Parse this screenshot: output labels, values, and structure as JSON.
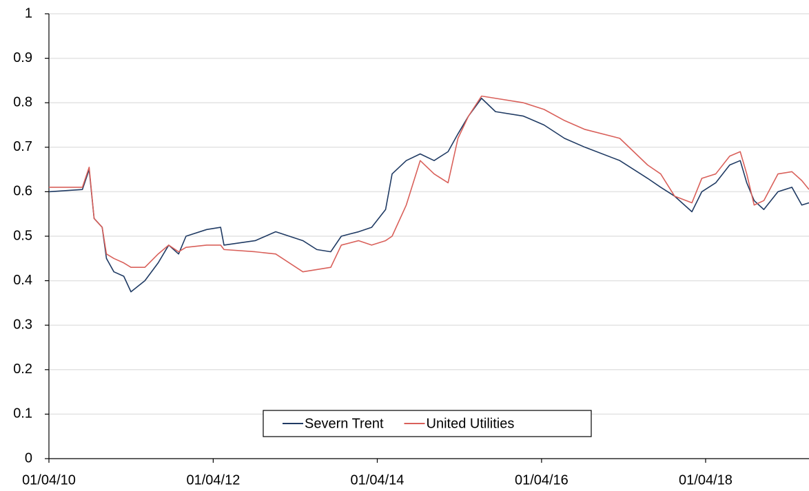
{
  "chart_data": {
    "type": "line",
    "x": [
      "2010-04-01",
      "2010-08-28",
      "2010-09-27",
      "2010-10-19",
      "2010-11-24",
      "2010-12-13",
      "2011-01-15",
      "2011-02-28",
      "2011-04-01",
      "2011-06-02",
      "2011-07-31",
      "2011-09-16",
      "2011-10-30",
      "2011-12-02",
      "2012-03-03",
      "2012-05-04",
      "2012-05-19",
      "2012-10-05",
      "2013-01-04",
      "2013-05-05",
      "2013-07-06",
      "2013-09-06",
      "2013-10-23",
      "2014-01-08",
      "2014-03-07",
      "2014-05-08",
      "2014-06-06",
      "2014-08-08",
      "2014-10-09",
      "2014-12-10",
      "2015-02-10",
      "2015-03-26",
      "2015-05-12",
      "2015-07-09",
      "2015-09-09",
      "2016-01-11",
      "2016-04-12",
      "2016-07-12",
      "2016-10-11",
      "2017-03-15",
      "2017-07-17",
      "2017-09-13",
      "2017-11-14",
      "2018-01-30",
      "2018-03-15",
      "2018-05-16",
      "2018-07-17",
      "2018-09-02",
      "2018-10-01",
      "2018-11-03",
      "2018-12-16",
      "2019-02-17",
      "2019-04-20",
      "2019-06-03",
      "2019-07-05"
    ],
    "series": [
      {
        "name": "Severn Trent",
        "color": "#1f3a63",
        "values": [
          0.6,
          0.605,
          0.65,
          0.54,
          0.52,
          0.45,
          0.42,
          0.41,
          0.375,
          0.4,
          0.44,
          0.48,
          0.46,
          0.5,
          0.515,
          0.52,
          0.48,
          0.49,
          0.51,
          0.49,
          0.47,
          0.465,
          0.5,
          0.51,
          0.52,
          0.56,
          0.64,
          0.67,
          0.685,
          0.67,
          0.69,
          0.73,
          0.77,
          0.81,
          0.78,
          0.77,
          0.75,
          0.72,
          0.7,
          0.67,
          0.63,
          0.61,
          0.59,
          0.555,
          0.6,
          0.62,
          0.66,
          0.67,
          0.62,
          0.58,
          0.56,
          0.6,
          0.61,
          0.57,
          0.575
        ]
      },
      {
        "name": "United Utilities",
        "color": "#d9605a",
        "values": [
          0.61,
          0.61,
          0.655,
          0.54,
          0.52,
          0.46,
          0.45,
          0.44,
          0.43,
          0.43,
          0.46,
          0.48,
          0.465,
          0.475,
          0.48,
          0.48,
          0.47,
          0.465,
          0.46,
          0.42,
          0.425,
          0.43,
          0.48,
          0.49,
          0.48,
          0.49,
          0.5,
          0.57,
          0.67,
          0.64,
          0.62,
          0.72,
          0.77,
          0.815,
          0.81,
          0.8,
          0.785,
          0.76,
          0.74,
          0.72,
          0.66,
          0.64,
          0.59,
          0.575,
          0.63,
          0.64,
          0.68,
          0.69,
          0.64,
          0.57,
          0.58,
          0.64,
          0.645,
          0.625,
          0.605
        ]
      }
    ],
    "xlim": [
      "2010-04-01",
      "2019-07-05"
    ],
    "xticks": [
      {
        "value": "2010-04-01",
        "label": "01/04/10"
      },
      {
        "value": "2012-04-01",
        "label": "01/04/12"
      },
      {
        "value": "2014-04-01",
        "label": "01/04/14"
      },
      {
        "value": "2016-04-01",
        "label": "01/04/16"
      },
      {
        "value": "2018-04-01",
        "label": "01/04/18"
      }
    ],
    "ylim": [
      0,
      1
    ],
    "yticks": [
      0,
      0.1,
      0.2,
      0.3,
      0.4,
      0.5,
      0.6,
      0.7,
      0.8,
      0.9,
      1
    ],
    "grid": true,
    "legend": "bottom"
  }
}
